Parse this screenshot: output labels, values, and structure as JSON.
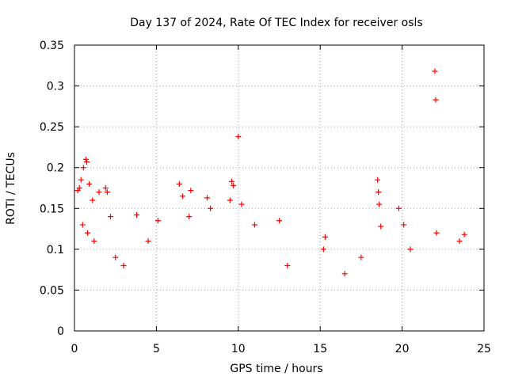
{
  "chart_data": {
    "type": "scatter",
    "title": "Day 137 of 2024, Rate Of TEC Index for receiver osls",
    "xlabel": "GPS time / hours",
    "ylabel": "ROTI / TECUs",
    "xlim": [
      0,
      25
    ],
    "ylim": [
      0,
      0.35
    ],
    "xticks": [
      0,
      5,
      10,
      15,
      20,
      25
    ],
    "yticks": [
      0,
      0.05,
      0.1,
      0.15,
      0.2,
      0.25,
      0.3,
      0.35
    ],
    "xtick_labels": [
      "0",
      "5",
      "10",
      "15",
      "20",
      "25"
    ],
    "ytick_labels": [
      "0",
      "0.05",
      "0.1",
      "0.15",
      "0.2",
      "0.25",
      "0.3",
      "0.35"
    ],
    "grid": true,
    "marker": "+",
    "color": "#ff0000",
    "series": [
      {
        "name": "ROTI",
        "points": [
          [
            0.2,
            0.172
          ],
          [
            0.3,
            0.175
          ],
          [
            0.4,
            0.185
          ],
          [
            0.55,
            0.2
          ],
          [
            0.7,
            0.21
          ],
          [
            0.75,
            0.207
          ],
          [
            0.9,
            0.18
          ],
          [
            1.1,
            0.16
          ],
          [
            1.5,
            0.17
          ],
          [
            1.9,
            0.175
          ],
          [
            2.0,
            0.17
          ],
          [
            2.2,
            0.14
          ],
          [
            0.5,
            0.13
          ],
          [
            0.8,
            0.12
          ],
          [
            1.2,
            0.11
          ],
          [
            2.5,
            0.09
          ],
          [
            3.0,
            0.08
          ],
          [
            3.8,
            0.142
          ],
          [
            4.5,
            0.11
          ],
          [
            5.1,
            0.135
          ],
          [
            6.4,
            0.18
          ],
          [
            6.6,
            0.165
          ],
          [
            7.1,
            0.172
          ],
          [
            7.0,
            0.14
          ],
          [
            8.1,
            0.163
          ],
          [
            8.3,
            0.15
          ],
          [
            9.5,
            0.16
          ],
          [
            9.6,
            0.183
          ],
          [
            9.7,
            0.178
          ],
          [
            10.0,
            0.238
          ],
          [
            10.2,
            0.155
          ],
          [
            11.0,
            0.13
          ],
          [
            12.5,
            0.135
          ],
          [
            13.0,
            0.08
          ],
          [
            15.3,
            0.115
          ],
          [
            15.2,
            0.1
          ],
          [
            16.5,
            0.07
          ],
          [
            17.5,
            0.09
          ],
          [
            18.5,
            0.185
          ],
          [
            18.55,
            0.17
          ],
          [
            18.6,
            0.155
          ],
          [
            18.7,
            0.128
          ],
          [
            19.8,
            0.15
          ],
          [
            20.1,
            0.13
          ],
          [
            20.5,
            0.1
          ],
          [
            22.0,
            0.318
          ],
          [
            22.05,
            0.283
          ],
          [
            22.1,
            0.12
          ],
          [
            23.5,
            0.11
          ],
          [
            23.8,
            0.118
          ]
        ]
      }
    ]
  }
}
